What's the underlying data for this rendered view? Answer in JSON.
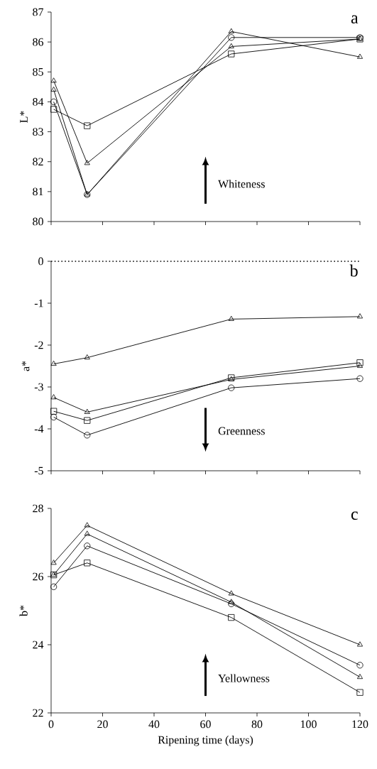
{
  "chart_data": [
    {
      "type": "line",
      "ylabel": "L*",
      "x": [
        1,
        14,
        70,
        120
      ],
      "xlim": [
        0,
        120
      ],
      "xticks": [
        0,
        20,
        40,
        60,
        80,
        100,
        120
      ],
      "ylim": [
        80,
        87
      ],
      "yticks": [
        80,
        81,
        82,
        83,
        84,
        85,
        86,
        87
      ],
      "tick_labels": "y",
      "annotations": [
        "a",
        "Whiteness"
      ],
      "series": [
        {
          "color": "#000000",
          "marker": "circle",
          "values": [
            84.0,
            80.9,
            86.15,
            86.15
          ]
        },
        {
          "color": "#000000",
          "marker": "square",
          "values": [
            83.75,
            83.2,
            85.6,
            86.1
          ]
        },
        {
          "color": "#000000",
          "marker": "triangle",
          "values": [
            84.7,
            81.95,
            85.85,
            86.1
          ]
        },
        {
          "color": "#000000",
          "marker": "triangle-down",
          "values": [
            84.4,
            80.9,
            86.35,
            85.5
          ]
        }
      ]
    },
    {
      "type": "line",
      "ylabel": "a*",
      "x": [
        1,
        14,
        70,
        120
      ],
      "xlim": [
        0,
        120
      ],
      "xticks": [
        0,
        20,
        40,
        60,
        80,
        100,
        120
      ],
      "ylim": [
        -5,
        0
      ],
      "yticks": [
        -5,
        -4,
        -3,
        -2,
        -1,
        0
      ],
      "tick_labels": "y",
      "annotations": [
        "b",
        "Greenness"
      ],
      "ref_lines": [
        {
          "axis": "y",
          "value": 0,
          "line_style": "dotted"
        }
      ],
      "series": [
        {
          "color": "#000000",
          "marker": "circle",
          "values": [
            -3.72,
            -4.15,
            -3.02,
            -2.8
          ]
        },
        {
          "color": "#000000",
          "marker": "square",
          "values": [
            -3.58,
            -3.8,
            -2.78,
            -2.42
          ]
        },
        {
          "color": "#000000",
          "marker": "triangle",
          "values": [
            -3.25,
            -3.6,
            -2.82,
            -2.5
          ]
        },
        {
          "color": "#000000",
          "marker": "triangle-down",
          "values": [
            -2.45,
            -2.3,
            -1.38,
            -1.32
          ]
        }
      ]
    },
    {
      "type": "line",
      "xlabel": "Ripening time (days)",
      "ylabel": "b*",
      "x": [
        1,
        14,
        70,
        120
      ],
      "xlim": [
        0,
        120
      ],
      "xticks": [
        0,
        20,
        40,
        60,
        80,
        100,
        120
      ],
      "ylim": [
        22,
        28
      ],
      "yticks": [
        22,
        24,
        26,
        28
      ],
      "annotations": [
        "c",
        "Yellowness"
      ],
      "series": [
        {
          "color": "#000000",
          "marker": "circle",
          "values": [
            25.7,
            26.9,
            25.2,
            23.4
          ]
        },
        {
          "color": "#000000",
          "marker": "square",
          "values": [
            26.05,
            26.4,
            24.8,
            22.6
          ]
        },
        {
          "color": "#000000",
          "marker": "triangle",
          "values": [
            26.05,
            27.25,
            25.25,
            23.05
          ]
        },
        {
          "color": "#000000",
          "marker": "triangle-down",
          "values": [
            26.4,
            27.5,
            25.5,
            24.0
          ]
        }
      ]
    }
  ]
}
